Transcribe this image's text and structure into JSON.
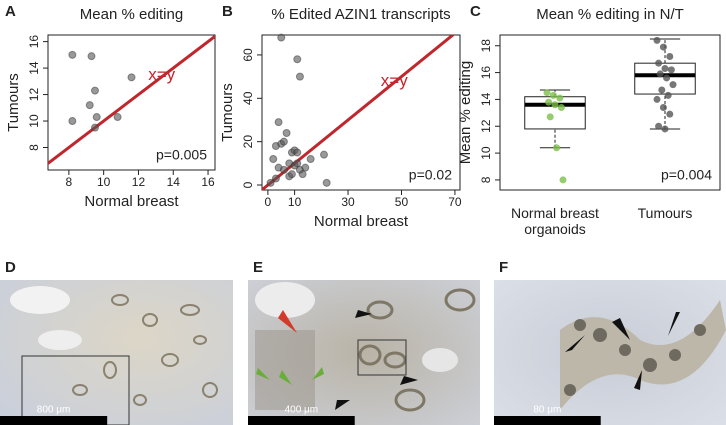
{
  "chart_data": [
    {
      "type": "scatter",
      "panel": "A",
      "title": "Mean % editing",
      "xlabel": "Normal breast",
      "ylabel": "Tumours",
      "x": [
        8.2,
        9.3,
        9.2,
        9.5,
        9.5,
        9.6,
        10.8,
        11.6,
        8.2
      ],
      "y": [
        15.0,
        14.9,
        11.2,
        12.3,
        9.5,
        10.3,
        10.3,
        13.3,
        10.0
      ],
      "color": "#555555",
      "line_color": "#c0272d",
      "xlim": [
        6.8,
        16.4
      ],
      "ylim": [
        6.3,
        16.5
      ],
      "xticks": [
        8,
        10,
        12,
        14,
        16
      ],
      "yticks": [
        8,
        10,
        12,
        14,
        16
      ],
      "annotations": [
        "x=y",
        "p=0.005"
      ]
    },
    {
      "type": "scatter",
      "panel": "B",
      "title": "% Edited AZIN1 transcripts",
      "xlabel": "Normal breast",
      "ylabel": "Tumours",
      "x": [
        5,
        11,
        12,
        4,
        3,
        5,
        2,
        4,
        6,
        8,
        9,
        10,
        11,
        8,
        3,
        1,
        10,
        12,
        14,
        13,
        16,
        21,
        22,
        7,
        6,
        9,
        11
      ],
      "y": [
        68,
        58,
        50,
        29,
        18,
        19,
        12,
        8,
        7,
        10,
        15,
        16,
        15,
        4,
        3,
        1,
        9,
        7,
        8,
        5,
        12,
        14,
        1,
        24,
        20,
        5,
        10
      ],
      "color": "#555555",
      "line_color": "#c0272d",
      "xlim": [
        -2.2,
        71.9
      ],
      "ylim": [
        -2.3,
        69.2
      ],
      "xticks": [
        0,
        10,
        30,
        50,
        70
      ],
      "yticks": [
        0,
        20,
        40,
        60
      ],
      "annotations": [
        "x=y",
        "p=0.02"
      ]
    },
    {
      "type": "box",
      "panel": "C",
      "title": "Mean % editing in N/T",
      "ylabel": "Mean % editing",
      "categories": [
        "Normal breast organoids",
        "Tumours"
      ],
      "boxes": [
        {
          "whislo": 10.4,
          "q1": 11.8,
          "med": 13.6,
          "q3": 14.2,
          "whishi": 14.7,
          "points": [
            14.5,
            14.3,
            14.1,
            13.8,
            13.6,
            13.4,
            12.7,
            10.4,
            8.0
          ],
          "color": "#7cbf4a"
        },
        {
          "whislo": 11.8,
          "q1": 14.4,
          "med": 15.8,
          "q3": 16.7,
          "whishi": 18.5,
          "points": [
            18.4,
            17.9,
            17.2,
            16.7,
            16.3,
            16.2,
            15.9,
            15.6,
            15.1,
            14.7,
            14.3,
            14.0,
            13.4,
            12.9,
            12.0,
            11.8
          ],
          "color": "#555555"
        }
      ],
      "ylim": [
        7.25,
        18.8
      ],
      "yticks": [
        8,
        10,
        12,
        14,
        16,
        18
      ],
      "annotations": [
        "p=0.004"
      ]
    }
  ],
  "images": [
    {
      "panel": "D",
      "scale_bar": "800 μm"
    },
    {
      "panel": "E",
      "scale_bar": "400 μm"
    },
    {
      "panel": "F",
      "scale_bar": "80 μm"
    }
  ]
}
